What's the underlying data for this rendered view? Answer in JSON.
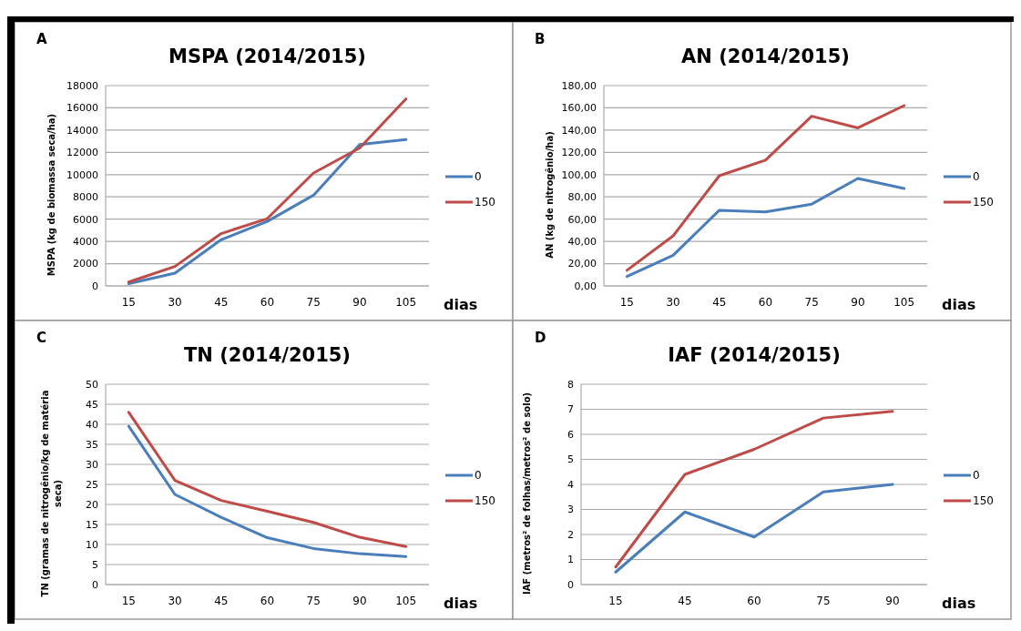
{
  "chart_data": [
    {
      "type": "line",
      "title": "MSPA (2014/2015)",
      "xlabel": "dias",
      "ylabel": "MSPA  (kg de biomassa seca/ha)",
      "annotations": [
        "A"
      ],
      "categories": [
        "15",
        "30",
        "45",
        "60",
        "75",
        "90",
        "105"
      ],
      "series": [
        {
          "name": "0",
          "color": "#4a7ebb",
          "values": [
            200,
            1150,
            4150,
            5800,
            8150,
            12700,
            13150
          ]
        },
        {
          "name": "150",
          "color": "#be4b48",
          "values": [
            350,
            1750,
            4700,
            6050,
            10150,
            12400,
            16800
          ]
        }
      ],
      "ylim": [
        0,
        18000
      ],
      "yticks": [
        0,
        2000,
        4000,
        6000,
        8000,
        10000,
        12000,
        14000,
        16000,
        18000
      ],
      "grid": "y",
      "legend": "right",
      "marker": "none"
    },
    {
      "type": "line",
      "title": "AN (2014/2015)",
      "xlabel": "dias",
      "ylabel": "AN (kg de nitrogênio/ha)",
      "annotations": [
        "B"
      ],
      "categories": [
        "15",
        "30",
        "45",
        "60",
        "75",
        "90",
        "105"
      ],
      "series": [
        {
          "name": "0",
          "color": "#4a7ebb",
          "values": [
            8.5,
            27.5,
            68,
            66.5,
            73.5,
            96.5,
            87.5
          ]
        },
        {
          "name": "150",
          "color": "#be4b48",
          "values": [
            14,
            45,
            99,
            113,
            152.5,
            142,
            162
          ]
        }
      ],
      "ylim": [
        0,
        180
      ],
      "yticks": [
        {
          "value": 0,
          "label": "0,00"
        },
        {
          "value": 20,
          "label": "20,00"
        },
        {
          "value": 40,
          "label": "40,00"
        },
        {
          "value": 60,
          "label": "60,00"
        },
        {
          "value": 80,
          "label": "80,00"
        },
        {
          "value": 100,
          "label": "100,00"
        },
        {
          "value": 120,
          "label": "120,00"
        },
        {
          "value": 140,
          "label": "140,00"
        },
        {
          "value": 160,
          "label": "160,00"
        },
        {
          "value": 180,
          "label": "180,00"
        }
      ],
      "grid": "y",
      "legend": "right",
      "marker": "none"
    },
    {
      "type": "line",
      "title": "TN (2014/2015)",
      "xlabel": "dias",
      "ylabel": "TN (gramas de nitrogênio/kg de matéria seca)",
      "annotations": [
        "C"
      ],
      "categories": [
        "15",
        "30",
        "45",
        "60",
        "75",
        "90",
        "105"
      ],
      "series": [
        {
          "name": "0",
          "color": "#4a7ebb",
          "values": [
            39.5,
            22.5,
            16.8,
            11.7,
            9,
            7.7,
            7
          ]
        },
        {
          "name": "150",
          "color": "#be4b48",
          "values": [
            43,
            26,
            21,
            18.3,
            15.5,
            11.8,
            9.5
          ]
        }
      ],
      "ylim": [
        0,
        50
      ],
      "yticks": [
        0,
        5,
        10,
        15,
        20,
        25,
        30,
        35,
        40,
        45,
        50
      ],
      "grid": "y",
      "legend": "right",
      "marker": "none"
    },
    {
      "type": "line",
      "title": "IAF (2014/2015)",
      "xlabel": "dias",
      "ylabel": "IAF (metros² de folhas/metros² de solo)",
      "annotations": [
        "D"
      ],
      "categories": [
        "15",
        "45",
        "60",
        "75",
        "90"
      ],
      "series": [
        {
          "name": "0",
          "color": "#4a7ebb",
          "values": [
            0.5,
            2.9,
            1.9,
            3.7,
            4.0
          ]
        },
        {
          "name": "150",
          "color": "#be4b48",
          "values": [
            0.7,
            4.4,
            5.4,
            6.65,
            6.92
          ]
        }
      ],
      "ylim": [
        0,
        8
      ],
      "yticks": [
        0,
        1,
        2,
        3,
        4,
        5,
        6,
        7,
        8
      ],
      "grid": "y",
      "legend": "right",
      "marker": "none"
    }
  ]
}
